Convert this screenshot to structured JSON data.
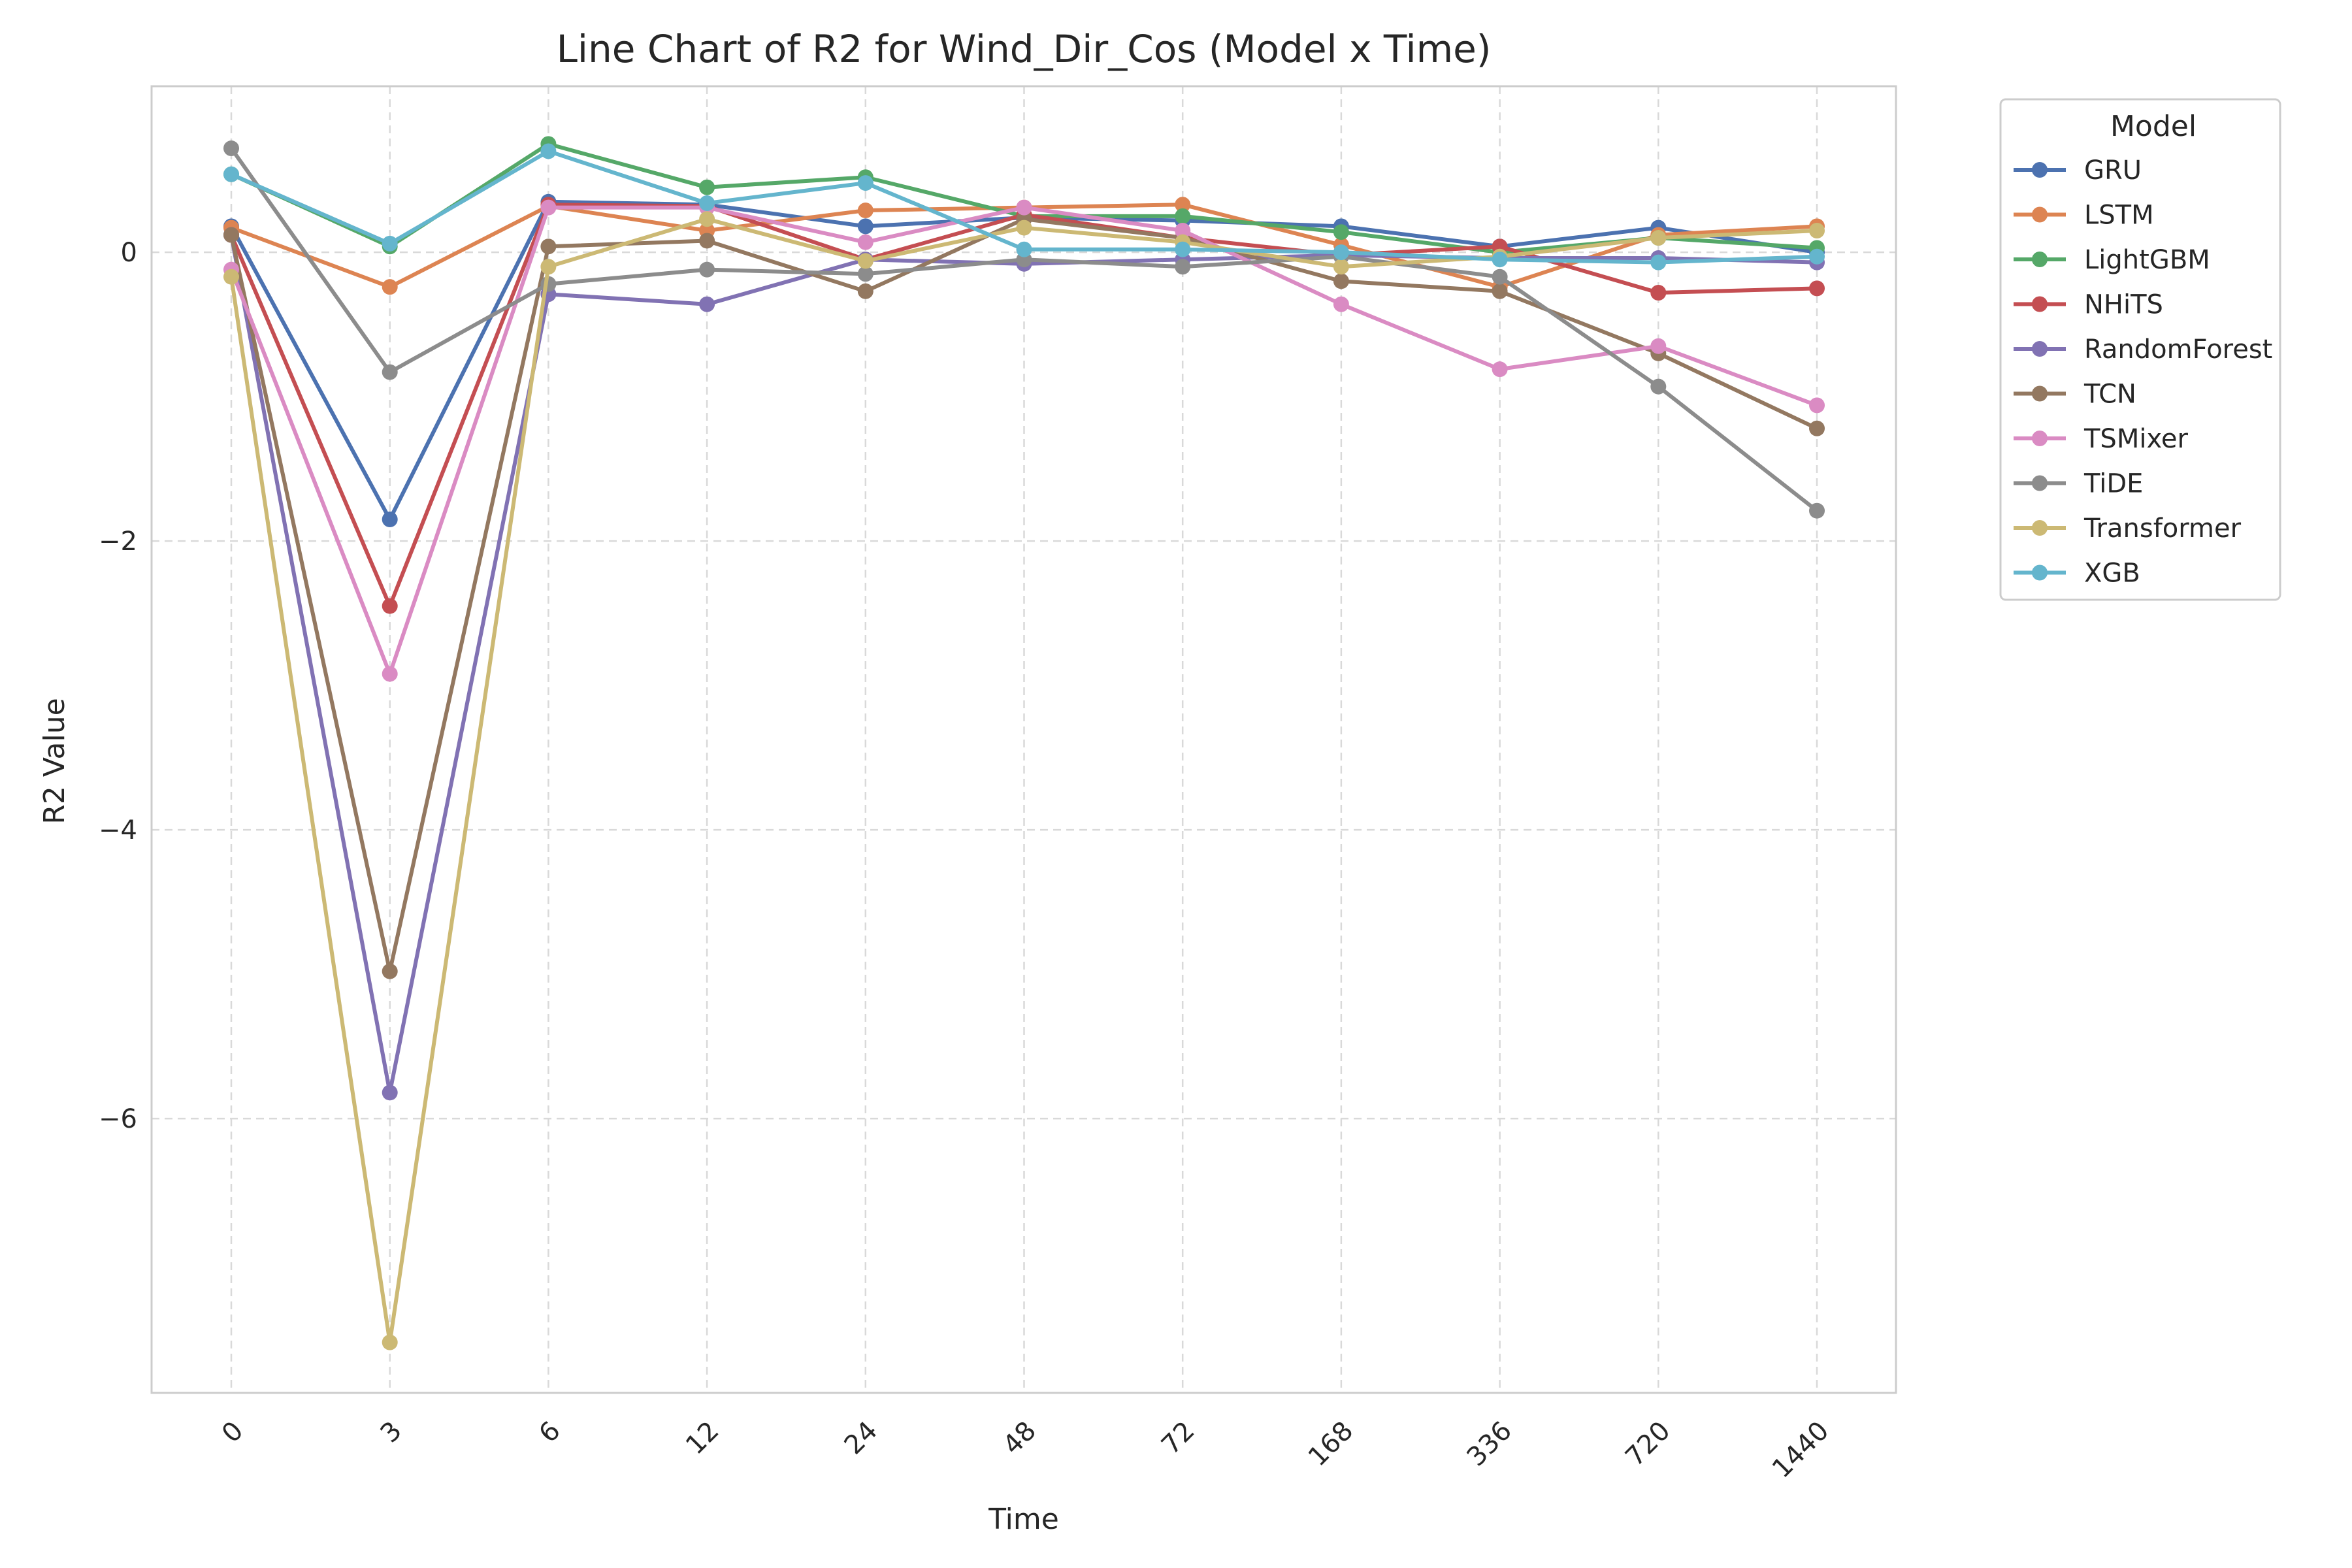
{
  "chart_data": {
    "type": "line",
    "title": "Line Chart of R2 for Wind_Dir_Cos (Model x Time)",
    "xlabel": "Time",
    "ylabel": "R2 Value",
    "categories": [
      "0",
      "3",
      "6",
      "12",
      "24",
      "48",
      "72",
      "168",
      "336",
      "720",
      "1440"
    ],
    "ylim": [
      -7.9,
      1.15
    ],
    "yticks": [
      0,
      -2,
      -4,
      -6
    ],
    "ytick_labels": [
      "0",
      "−2",
      "−4",
      "−6"
    ],
    "grid": true,
    "legend": {
      "title": "Model",
      "placement": "outside-top-right"
    },
    "series": [
      {
        "name": "GRU",
        "color": "#4C72B0",
        "values": [
          0.18,
          -1.85,
          0.35,
          0.33,
          0.18,
          0.24,
          0.22,
          0.18,
          0.04,
          0.17,
          0.0
        ]
      },
      {
        "name": "LSTM",
        "color": "#DD8452",
        "values": [
          0.17,
          -0.24,
          0.32,
          0.15,
          0.29,
          0.31,
          0.33,
          0.05,
          -0.24,
          0.12,
          0.18
        ]
      },
      {
        "name": "LightGBM",
        "color": "#55A868",
        "values": [
          0.54,
          0.04,
          0.75,
          0.45,
          0.52,
          0.25,
          0.25,
          0.14,
          0.0,
          0.1,
          0.03
        ]
      },
      {
        "name": "NHiTS",
        "color": "#C44E52",
        "values": [
          0.12,
          -2.45,
          0.33,
          0.32,
          -0.05,
          0.26,
          0.1,
          -0.02,
          0.04,
          -0.28,
          -0.25
        ]
      },
      {
        "name": "RandomForest",
        "color": "#8172B3",
        "values": [
          0.12,
          -5.82,
          -0.29,
          -0.36,
          -0.05,
          -0.08,
          -0.05,
          -0.02,
          -0.04,
          -0.04,
          -0.07
        ]
      },
      {
        "name": "TCN",
        "color": "#937860",
        "values": [
          0.12,
          -4.98,
          0.04,
          0.08,
          -0.27,
          0.23,
          0.1,
          -0.2,
          -0.27,
          -0.7,
          -1.22
        ]
      },
      {
        "name": "TSMixer",
        "color": "#DA8BC3",
        "values": [
          -0.12,
          -2.92,
          0.31,
          0.31,
          0.07,
          0.31,
          0.15,
          -0.36,
          -0.81,
          -0.65,
          -1.06
        ]
      },
      {
        "name": "TiDE",
        "color": "#8C8C8C",
        "values": [
          0.72,
          -0.83,
          -0.22,
          -0.12,
          -0.15,
          -0.05,
          -0.1,
          -0.03,
          -0.17,
          -0.93,
          -1.79
        ]
      },
      {
        "name": "Transformer",
        "color": "#CCB974",
        "values": [
          -0.17,
          -7.55,
          -0.1,
          0.23,
          -0.06,
          0.17,
          0.07,
          -0.1,
          -0.03,
          0.1,
          0.15
        ]
      },
      {
        "name": "XGB",
        "color": "#64B5CD",
        "values": [
          0.54,
          0.06,
          0.7,
          0.34,
          0.48,
          0.02,
          0.02,
          0.0,
          -0.05,
          -0.07,
          -0.03
        ]
      }
    ]
  }
}
